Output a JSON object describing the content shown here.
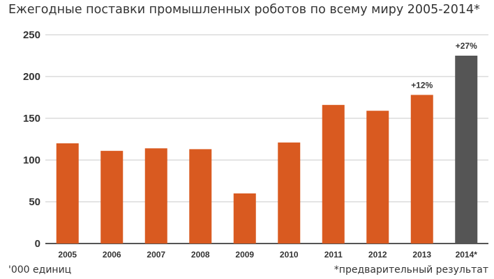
{
  "chart_data": {
    "type": "bar",
    "title": "Ежегодные поставки промышленных роботов по всему миру 2005-2014*",
    "categories": [
      "2005",
      "2006",
      "2007",
      "2008",
      "2009",
      "2010",
      "2011",
      "2012",
      "2013",
      "2014*"
    ],
    "values": [
      120,
      111,
      114,
      113,
      60,
      121,
      166,
      159,
      178,
      225
    ],
    "ylim": [
      0,
      250
    ],
    "yticks": [
      0,
      50,
      100,
      150,
      200,
      250
    ],
    "grid": true,
    "colors": {
      "default": "#d95a20",
      "highlight": "#555555",
      "grid": "#c8c8c8",
      "axis": "#555555"
    },
    "highlight_index": 9,
    "annotations": [
      {
        "category": "2013",
        "text": "+12%"
      },
      {
        "category": "2014*",
        "text": "+27%"
      }
    ],
    "unit_note": "'000 единиц",
    "footnote": "*предварительный результат"
  }
}
